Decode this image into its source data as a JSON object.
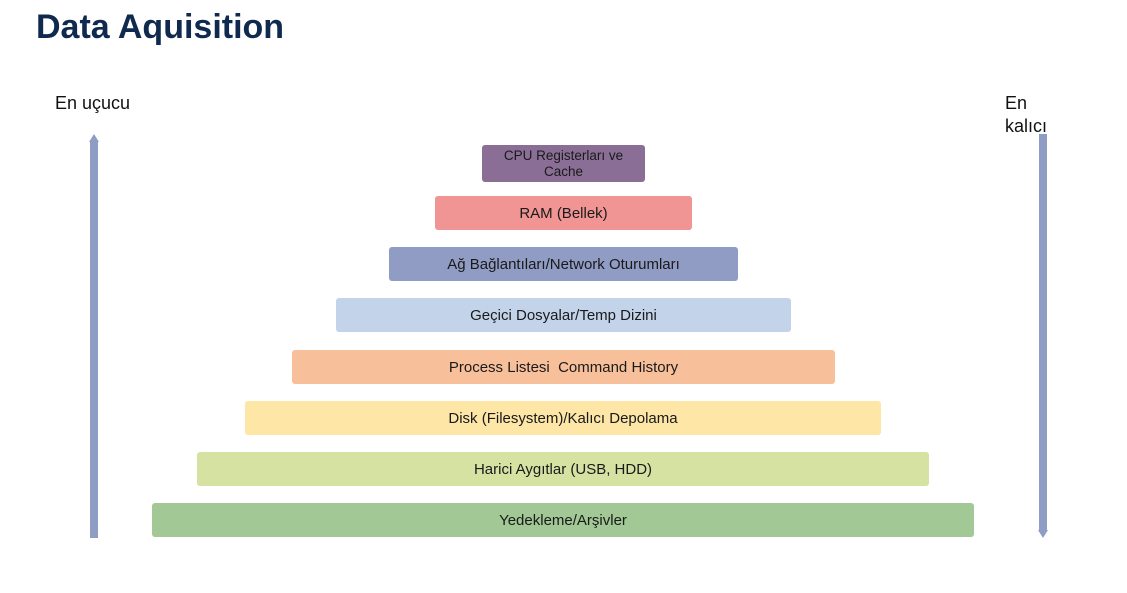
{
  "title": "Data Aquisition",
  "left_label": "En uçucu",
  "right_label": "En kalıcı",
  "arrow_color": "#8f9dc4",
  "layers": [
    {
      "label": "CPU Registerları ve Cache",
      "color": "#8a6e96"
    },
    {
      "label": "RAM (Bellek)",
      "color": "#f09494"
    },
    {
      "label": "Ağ Bağlantıları/Network Oturumları",
      "color": "#919cc4"
    },
    {
      "label": "Geçici Dosyalar/Temp Dizini",
      "color": "#c3d3ea"
    },
    {
      "label": "Process Listesi  Command History",
      "color": "#f7c09a"
    },
    {
      "label": "Disk (Filesystem)/Kalıcı Depolama",
      "color": "#fde6a6"
    },
    {
      "label": "Harici Aygıtlar (USB, HDD)",
      "color": "#d6e2a2"
    },
    {
      "label": "Yedekleme/Arşivler",
      "color": "#a1c895"
    }
  ]
}
